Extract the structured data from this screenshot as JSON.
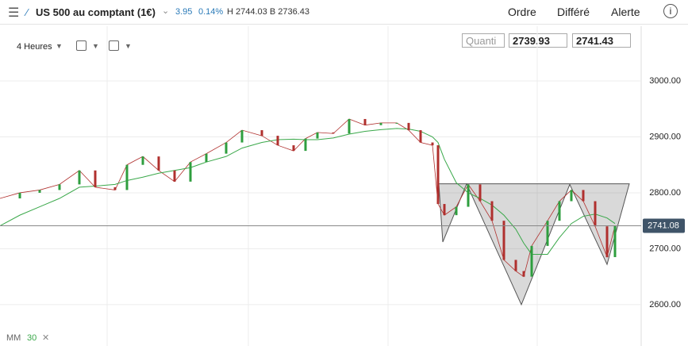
{
  "header": {
    "instrument": "US 500 au comptant (1€)",
    "change": "3.95",
    "change_pct": "0.14%",
    "high_low": "H 2744.03 B 2736.43",
    "buttons": [
      "Ordre",
      "Différé",
      "Alerte"
    ]
  },
  "toolbar": {
    "timeframe": "4 Heures",
    "quantity_placeholder": "Quanti",
    "sell": "2739.93",
    "buy": "2741.43"
  },
  "chart_data": {
    "type": "line",
    "x": [
      0,
      5,
      10,
      15,
      20,
      24,
      29,
      32,
      36,
      40,
      44,
      48,
      52,
      57,
      61,
      66,
      70,
      74,
      77,
      80,
      84,
      88,
      92,
      96,
      100,
      103,
      106,
      109,
      110.4,
      112,
      115,
      118,
      121,
      124,
      127,
      130,
      132,
      134,
      138,
      141,
      144,
      147,
      150,
      153,
      155
    ],
    "series": [
      {
        "color": "#b0302e",
        "values": [
          2790,
          2800,
          2805,
          2815,
          2840,
          2810,
          2805,
          2850,
          2865,
          2840,
          2820,
          2855,
          2870,
          2890,
          2912,
          2902,
          2885,
          2875,
          2897,
          2908,
          2906,
          2932,
          2921,
          2925,
          2925,
          2912,
          2890,
          2885,
          2780,
          2760,
          2775,
          2815,
          2785,
          2750,
          2680,
          2660,
          2650,
          2705,
          2750,
          2785,
          2805,
          2785,
          2740,
          2685,
          2741
        ]
      },
      {
        "color": "#3aa84a",
        "values": [
          2741,
          2760,
          2775,
          2790,
          2810,
          2812,
          2815,
          2822,
          2828,
          2835,
          2840,
          2845,
          2855,
          2865,
          2880,
          2890,
          2895,
          2896,
          2895,
          2895,
          2898,
          2905,
          2910,
          2913,
          2915,
          2914,
          2910,
          2900,
          2890,
          2860,
          2818,
          2800,
          2790,
          2778,
          2760,
          2735,
          2710,
          2690,
          2690,
          2720,
          2745,
          2758,
          2762,
          2755,
          2745
        ]
      }
    ],
    "pattern": {
      "x": [
        110.6,
        111.6,
        117.6,
        131.4,
        143.6,
        153,
        158.6
      ],
      "values": [
        2816,
        2712,
        2816,
        2600,
        2815,
        2672,
        2816
      ]
    },
    "last_price": 2741.08,
    "xlim": [
      0,
      161.6
    ],
    "ylim": [
      2526,
      3098
    ],
    "yticks": [
      {
        "value": 2600,
        "label": "2600.00"
      },
      {
        "value": 2700,
        "label": "2700.00"
      },
      {
        "value": 2800,
        "label": "2800.00"
      },
      {
        "value": 2900,
        "label": "2900.00"
      },
      {
        "value": 3000,
        "label": "3000.00"
      }
    ],
    "grid": true,
    "legend": {
      "label": "MM",
      "period": "30"
    }
  }
}
